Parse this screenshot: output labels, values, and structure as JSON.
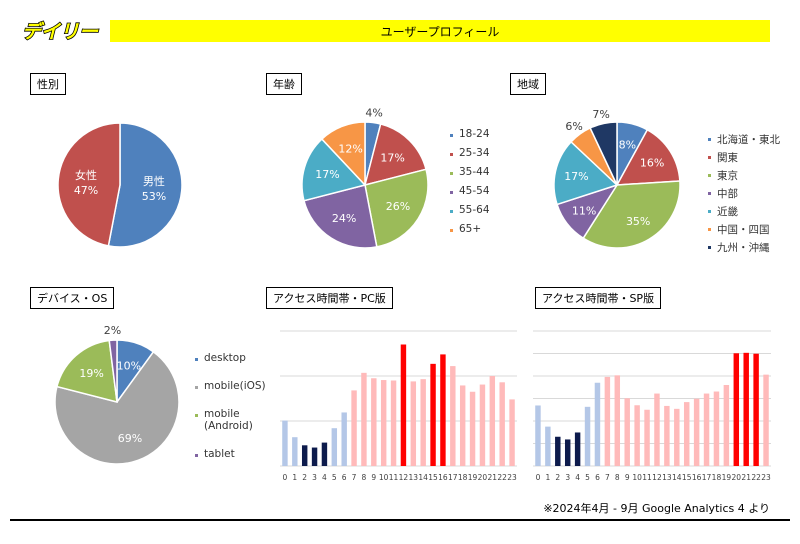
{
  "header": {
    "logo_text": "デイリー",
    "title": "ユーザープロフィール"
  },
  "sections": {
    "gender": "性別",
    "age": "年齢",
    "region": "地域",
    "device": "デバイス・OS",
    "pc": "アクセス時間帯・PC版",
    "sp": "アクセス時間帯・SP版"
  },
  "footer": "※2024年4月 - 9月  Google Analytics 4 より",
  "chart_data": [
    {
      "id": "gender",
      "type": "pie",
      "title": "性別",
      "slices": [
        {
          "label": "男性",
          "value": 53,
          "color": "#4f81bd"
        },
        {
          "label": "女性",
          "value": 47,
          "color": "#c0504d"
        }
      ]
    },
    {
      "id": "age",
      "type": "pie",
      "title": "年齢",
      "slices": [
        {
          "label": "18-24",
          "value": 4,
          "color": "#4f81bd"
        },
        {
          "label": "25-34",
          "value": 17,
          "color": "#c0504d"
        },
        {
          "label": "35-44",
          "value": 26,
          "color": "#9bbb59"
        },
        {
          "label": "45-54",
          "value": 24,
          "color": "#8064a2"
        },
        {
          "label": "55-64",
          "value": 17,
          "color": "#4bacc6"
        },
        {
          "label": "65+",
          "value": 12,
          "color": "#f79646"
        }
      ]
    },
    {
      "id": "region",
      "type": "pie",
      "title": "地域",
      "slices": [
        {
          "label": "北海道・東北",
          "value": 8,
          "color": "#4f81bd"
        },
        {
          "label": "関東",
          "value": 16,
          "color": "#c0504d"
        },
        {
          "label": "東京",
          "value": 35,
          "color": "#9bbb59"
        },
        {
          "label": "中部",
          "value": 11,
          "color": "#8064a2"
        },
        {
          "label": "近畿",
          "value": 17,
          "color": "#4bacc6"
        },
        {
          "label": "中国・四国",
          "value": 6,
          "color": "#f79646"
        },
        {
          "label": "九州・沖縄",
          "value": 7,
          "color": "#1f3864"
        }
      ]
    },
    {
      "id": "device",
      "type": "pie",
      "title": "デバイス・OS",
      "slices": [
        {
          "label": "desktop",
          "value": 10,
          "color": "#4f81bd"
        },
        {
          "label": "mobile(iOS)",
          "value": 69,
          "color": "#a5a5a5"
        },
        {
          "label": "mobile (Android)",
          "value": 19,
          "color": "#9bbb59"
        },
        {
          "label": "tablet",
          "value": 2,
          "color": "#8064a2"
        }
      ]
    },
    {
      "id": "pc",
      "type": "bar",
      "title": "アクセス時間帯・PC版",
      "categories": [
        "0",
        "1",
        "2",
        "3",
        "4",
        "5",
        "6",
        "7",
        "8",
        "9",
        "10",
        "11",
        "12",
        "13",
        "14",
        "15",
        "16",
        "17",
        "18",
        "19",
        "20",
        "21",
        "22",
        "23"
      ],
      "values": [
        1.01,
        0.64,
        0.46,
        0.41,
        0.52,
        0.84,
        1.19,
        1.68,
        2.07,
        1.95,
        1.91,
        1.9,
        2.7,
        1.88,
        1.93,
        2.27,
        2.48,
        2.22,
        1.79,
        1.65,
        1.81,
        2.0,
        1.86,
        1.48
      ],
      "highlight": [
        "light",
        "light",
        "dark",
        "dark",
        "dark",
        "light",
        "light",
        "pink",
        "pink",
        "pink",
        "pink",
        "pink",
        "red",
        "pink",
        "pink",
        "red",
        "red",
        "pink",
        "pink",
        "pink",
        "pink",
        "pink",
        "pink",
        "pink"
      ],
      "ylim": [
        0,
        3
      ],
      "gridlines": 3
    },
    {
      "id": "sp",
      "type": "bar",
      "title": "アクセス時間帯・SP版",
      "categories": [
        "0",
        "1",
        "2",
        "3",
        "4",
        "5",
        "6",
        "7",
        "8",
        "9",
        "10",
        "11",
        "12",
        "13",
        "14",
        "15",
        "16",
        "17",
        "18",
        "19",
        "20",
        "21",
        "22",
        "23"
      ],
      "values": [
        2.69,
        1.75,
        1.3,
        1.18,
        1.49,
        2.63,
        3.7,
        3.96,
        4.03,
        3.01,
        2.7,
        2.5,
        3.22,
        2.67,
        2.54,
        2.84,
        2.99,
        3.22,
        3.31,
        3.6,
        5.01,
        5.03,
        4.99,
        4.06
      ],
      "highlight": [
        "light",
        "light",
        "dark",
        "dark",
        "dark",
        "light",
        "light",
        "pink",
        "pink",
        "pink",
        "pink",
        "pink",
        "pink",
        "pink",
        "pink",
        "pink",
        "pink",
        "pink",
        "pink",
        "pink",
        "red",
        "red",
        "red",
        "pink"
      ],
      "ylim": [
        0,
        6
      ],
      "gridlines": 6
    }
  ],
  "colors": {
    "light": "#b4c7e7",
    "dark": "#0d1b4c",
    "pink": "#ffbaba",
    "red": "#ff0000",
    "grid": "#d9d9d9"
  }
}
